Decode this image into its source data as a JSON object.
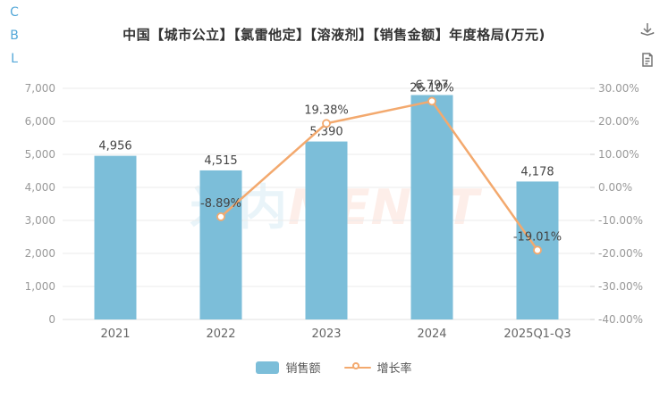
{
  "app": {
    "vertical_tabs": [
      "C",
      "B",
      "L"
    ],
    "tools": [
      {
        "name": "download-icon"
      },
      {
        "name": "report-icon"
      }
    ]
  },
  "title": "中国【城市公立】【氯雷他定】【溶液剂】【销售金额】年度格局(万元)",
  "watermark": {
    "cn": "米内",
    "en": "MENET"
  },
  "colors": {
    "bar": "#7cbed9",
    "line": "#f3a96e",
    "grid": "#ebebeb",
    "axis_tick_text": "#999999",
    "x_tick_text": "#666666",
    "data_label_text": "#444444",
    "title_text": "#333333",
    "tab_blue": "#52a7d8"
  },
  "chart_data": {
    "type": "bar",
    "title": "中国【城市公立】【氯雷他定】【溶液剂】【销售金额】年度格局(万元)",
    "categories": [
      "2021",
      "2022",
      "2023",
      "2024",
      "2025Q1-Q3"
    ],
    "series": [
      {
        "name": "销售额",
        "type": "bar",
        "axis": "left",
        "values": [
          4956,
          4515,
          5390,
          6797,
          4178
        ],
        "labels": [
          "4,956",
          "4,515",
          "5,390",
          "6,797",
          "4,178"
        ],
        "color": "#7cbed9"
      },
      {
        "name": "增长率",
        "type": "line",
        "axis": "right",
        "values": [
          null,
          -8.89,
          19.38,
          26.1,
          -19.01
        ],
        "labels": [
          null,
          "-8.89%",
          "19.38%",
          "26.10%",
          "-19.01%"
        ],
        "color": "#f3a96e"
      }
    ],
    "left_axis": {
      "min": 0,
      "max": 7000,
      "ticks": [
        "7,000",
        "6,000",
        "5,000",
        "4,000",
        "3,000",
        "2,000",
        "1,000",
        "0"
      ]
    },
    "right_axis": {
      "min": -40,
      "max": 30,
      "ticks": [
        "30.00%",
        "20.00%",
        "10.00%",
        "0.00%",
        "-10.00%",
        "-20.00%",
        "-30.00%",
        "-40.00%"
      ]
    },
    "grid": true,
    "legend_position": "bottom",
    "xlabel": "",
    "ylabel": ""
  }
}
